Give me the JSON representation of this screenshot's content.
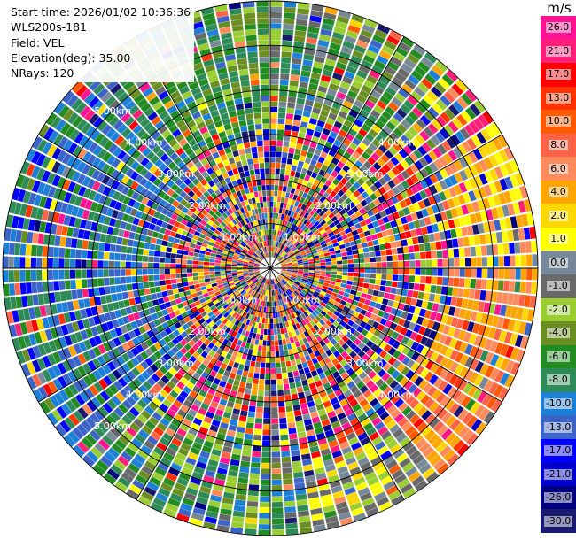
{
  "info": {
    "start_time": "Start time: 2026/01/02 10:36:36",
    "station": "WLS200s-181",
    "field": "Field: VEL",
    "elevation": "Elevation(deg): 35.00",
    "nrays": "NRays: 120"
  },
  "chart_data": {
    "type": "heatmap",
    "projection": "polar-ppi",
    "field": "VEL",
    "unit": "m/s",
    "n_rays": 120,
    "max_range_km": 6.0,
    "range_rings_km": [
      1,
      2,
      3,
      4,
      5,
      6
    ],
    "ring_labels": [
      "1.00km",
      "2.00km",
      "3.00km",
      "4.00km",
      "5.00km"
    ],
    "colorbar": {
      "ticks": [
        "26.0",
        "21.0",
        "17.0",
        "13.0",
        "10.0",
        "8.0",
        "6.0",
        "4.0",
        "2.0",
        "1.0",
        "0.0",
        "-1.0",
        "-2.0",
        "-4.0",
        "-6.0",
        "-8.0",
        "-10.0",
        "-13.0",
        "-17.0",
        "-21.0",
        "-26.0",
        "-30.0"
      ],
      "colors": [
        "#ff1493",
        "#ff1e78",
        "#ff0000",
        "#ff3300",
        "#ff5a00",
        "#ff6347",
        "#ff8a5c",
        "#ffa500",
        "#ffd700",
        "#ffff00",
        "#778899",
        "#696969",
        "#9acd32",
        "#6b8e23",
        "#228b22",
        "#2e8b57",
        "#1e7fd6",
        "#3c64c8",
        "#0000ff",
        "#0000cd",
        "#000080",
        "#191970"
      ],
      "vmin": -30,
      "vmax": 30
    },
    "regions": [
      {
        "az_from": 225,
        "az_to": 320,
        "r_from_km": 2.5,
        "r_to_km": 6.0,
        "mean_class": 16,
        "spread": 2
      },
      {
        "az_from": 320,
        "az_to": 360,
        "r_from_km": 3.0,
        "r_to_km": 6.0,
        "mean_class": 14,
        "spread": 2
      },
      {
        "az_from": 0,
        "az_to": 40,
        "r_from_km": 3.5,
        "r_to_km": 6.0,
        "mean_class": 13,
        "spread": 3
      },
      {
        "az_from": 55,
        "az_to": 90,
        "r_from_km": 4.2,
        "r_to_km": 6.0,
        "mean_class": 8,
        "spread": 2
      },
      {
        "az_from": 90,
        "az_to": 140,
        "r_from_km": 4.0,
        "r_to_km": 6.0,
        "mean_class": 6,
        "spread": 2
      },
      {
        "az_from": 140,
        "az_to": 170,
        "r_from_km": 4.5,
        "r_to_km": 6.0,
        "mean_class": 10,
        "spread": 2
      },
      {
        "az_from": 170,
        "az_to": 225,
        "r_from_km": 4.0,
        "r_to_km": 6.0,
        "mean_class": 14,
        "spread": 3
      }
    ]
  }
}
